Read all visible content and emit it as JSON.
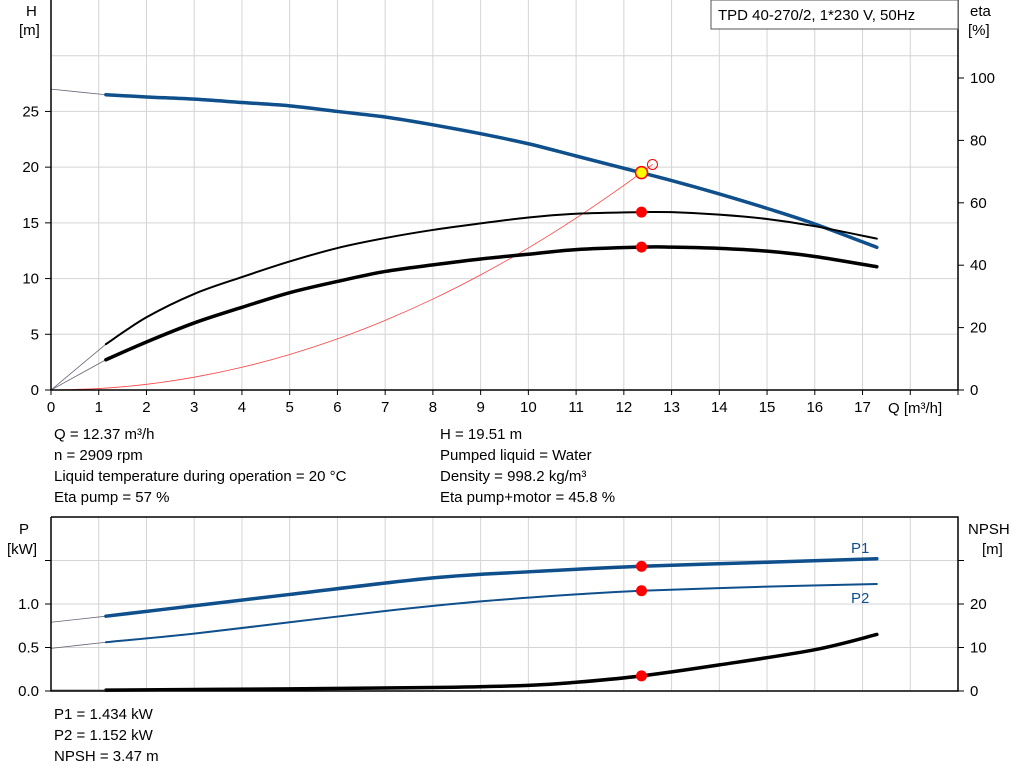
{
  "legend_box": "TPD 40-270/2, 1*230 V, 50Hz",
  "colors": {
    "head": "#0e4f8c",
    "efficiency": "#000000",
    "system": "#ff4040",
    "marker": "#ff0000",
    "duty_point_fill": "#ffff00",
    "grid": "#d4d4d4"
  },
  "info_top": {
    "left": [
      "Q = 12.37 m³/h",
      "n = 2909 rpm",
      "Liquid temperature during operation = 20 °C",
      "Eta pump = 57 %"
    ],
    "right": [
      "H = 19.51 m",
      "Pumped liquid = Water",
      "Density = 998.2 kg/m³",
      "Eta pump+motor = 45.8 %"
    ]
  },
  "info_bottom": [
    "P1 = 1.434 kW",
    "P2 = 1.152 kW",
    "NPSH = 3.47 m"
  ],
  "chart_data": [
    {
      "type": "line",
      "xlabel": "Q [m³/h]",
      "ylabel": [
        "H",
        "[m]"
      ],
      "y2label": [
        "eta",
        "[%]"
      ],
      "xlim": [
        0,
        19
      ],
      "ylim": [
        0,
        35
      ],
      "y2lim": [
        0,
        125
      ],
      "xticks": [
        0,
        1,
        2,
        3,
        4,
        5,
        6,
        7,
        8,
        9,
        10,
        11,
        12,
        13,
        14,
        15,
        16,
        17
      ],
      "yticks": [
        0,
        5,
        10,
        15,
        20,
        25
      ],
      "y2ticks": [
        0,
        20,
        40,
        60,
        80,
        100
      ],
      "grid": true,
      "series": [
        {
          "key": "H",
          "axis": "left",
          "x": [
            0,
            1.15,
            2,
            3,
            4,
            5,
            6,
            7,
            8,
            9,
            10,
            11,
            12,
            13,
            14,
            15,
            16,
            17.3
          ],
          "y": [
            27,
            26.5,
            26.3,
            26.1,
            25.8,
            25.5,
            25.0,
            24.5,
            23.8,
            23.0,
            22.1,
            21.0,
            19.9,
            18.8,
            17.6,
            16.3,
            14.9,
            12.8
          ]
        },
        {
          "key": "eta_pump",
          "axis": "right",
          "x": [
            0,
            1.15,
            2,
            3,
            4,
            5,
            6,
            7,
            8,
            9,
            10,
            11,
            12.37,
            13,
            14,
            15,
            16,
            17.3
          ],
          "y": [
            0,
            14.7,
            23.3,
            30.8,
            36.2,
            41.2,
            45.5,
            48.7,
            51.3,
            53.4,
            55.3,
            56.5,
            57,
            57,
            56.2,
            54.8,
            52.5,
            48.5
          ]
        },
        {
          "key": "eta_pump_motor",
          "axis": "right",
          "x": [
            0,
            1.15,
            2,
            3,
            4,
            5,
            6,
            7,
            8,
            9,
            10,
            11,
            12.37,
            13,
            14,
            15,
            16,
            17.3
          ],
          "y": [
            0,
            9.7,
            15.4,
            21.5,
            26.5,
            31.2,
            34.8,
            38,
            40.1,
            42,
            43.5,
            45,
            45.8,
            45.8,
            45.4,
            44.5,
            42.8,
            39.5
          ]
        },
        {
          "key": "system_curve",
          "axis": "left",
          "x": [
            0,
            1,
            2,
            3,
            4,
            5,
            6,
            7,
            8,
            9,
            10,
            11,
            12,
            12.6
          ],
          "y": [
            0,
            0.13,
            0.51,
            1.15,
            2.04,
            3.19,
            4.59,
            6.25,
            8.16,
            10.33,
            12.75,
            15.43,
            18.36,
            20.24
          ]
        }
      ],
      "duty_point": {
        "Q": 12.37,
        "H": 19.51,
        "eta_pump": 57,
        "eta_pump_motor": 45.8
      }
    },
    {
      "type": "line",
      "ylabel": [
        "P",
        "[kW]"
      ],
      "y2label": [
        "NPSH",
        "[m]"
      ],
      "xlim": [
        0,
        19
      ],
      "ylim": [
        0,
        2.0
      ],
      "y2lim": [
        0,
        40
      ],
      "yticks": [
        "0.0",
        "0.5",
        "1.0"
      ],
      "y2ticks": [
        0,
        10,
        20
      ],
      "grid": true,
      "series": [
        {
          "key": "P1",
          "name": "P1",
          "axis": "left",
          "x": [
            0,
            1.15,
            3,
            5,
            8,
            10,
            12.37,
            15,
            17.3
          ],
          "y": [
            0.79,
            0.86,
            0.98,
            1.11,
            1.3,
            1.37,
            1.434,
            1.48,
            1.52
          ]
        },
        {
          "key": "P2",
          "name": "P2",
          "axis": "left",
          "x": [
            0,
            1.15,
            3,
            5,
            7,
            9,
            11,
            12.37,
            15,
            17.3
          ],
          "y": [
            0.49,
            0.56,
            0.66,
            0.79,
            0.92,
            1.03,
            1.11,
            1.152,
            1.2,
            1.23
          ]
        },
        {
          "key": "NPSH",
          "axis": "right",
          "x": [
            1.15,
            5,
            8,
            10,
            11,
            12.37,
            14,
            16,
            17.3
          ],
          "y": [
            0.2,
            0.5,
            0.8,
            1.3,
            2.0,
            3.47,
            6.0,
            9.5,
            13.0
          ]
        }
      ],
      "duty_point": {
        "Q": 12.37,
        "P1": 1.434,
        "P2": 1.152,
        "NPSH": 3.47
      }
    }
  ]
}
